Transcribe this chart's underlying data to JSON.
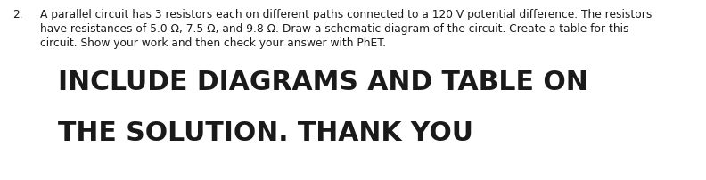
{
  "background_color": "#ffffff",
  "number_label": "2.",
  "small_text_line1": "A parallel circuit has 3 resistors each on different paths connected to a 120 V potential difference. The resistors",
  "small_text_line2": "have resistances of 5.0 Ω, 7.5 Ω, and 9.8 Ω. Draw a schematic diagram of the circuit. Create a table for this",
  "small_text_line3": "circuit. Show your work and then check your answer with PhET.",
  "big_text_line1": "INCLUDE DIAGRAMS AND TABLE ON",
  "big_text_line2": "THE SOLUTION. THANK YOU",
  "small_font_size": 8.8,
  "big_font_size": 21.5,
  "small_text_color": "#1a1a1a",
  "big_text_color": "#1a1a1a",
  "fig_width": 7.92,
  "fig_height": 2.02,
  "dpi": 100
}
